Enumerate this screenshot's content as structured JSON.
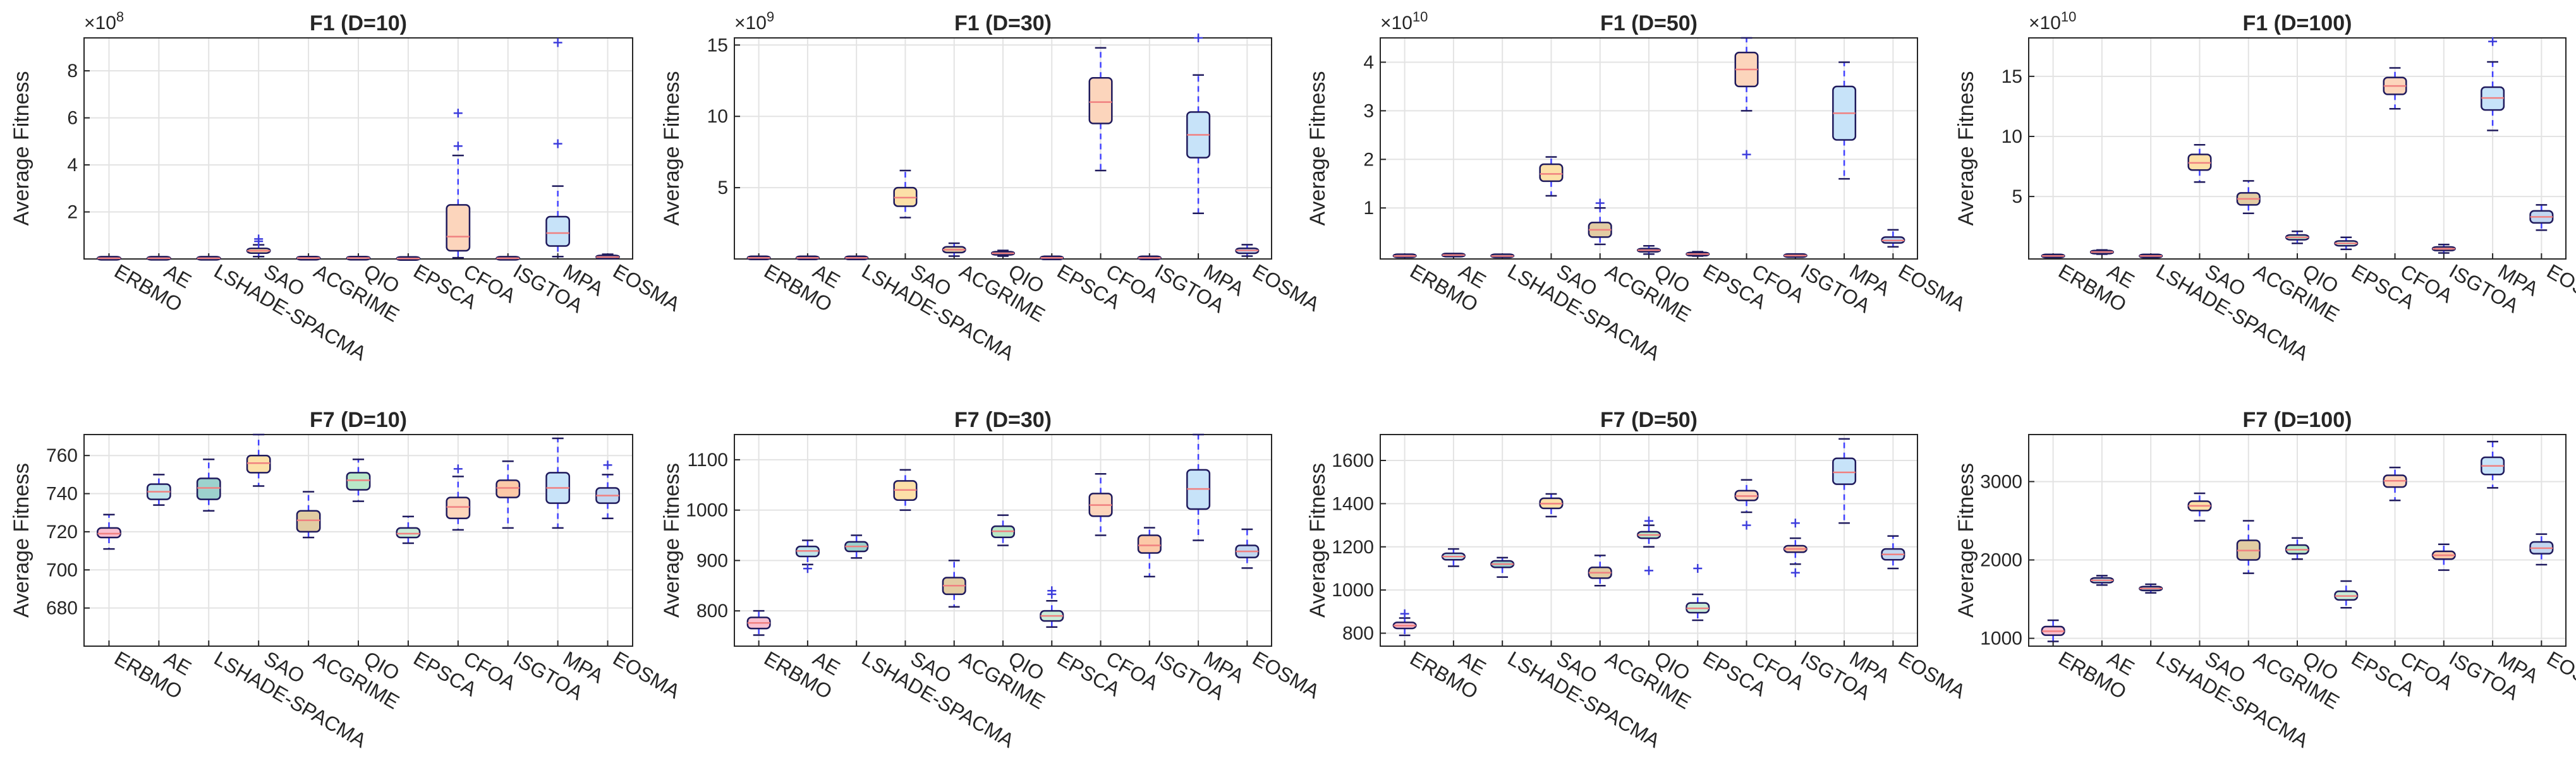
{
  "figure": {
    "panel_count": 8
  },
  "chart_data": [
    {
      "type": "boxplot",
      "title": "F1 (D=10)",
      "ylabel": "Average Fitness",
      "exponent": "×10^8",
      "exp_base": "×10",
      "exp_power": "8",
      "ylim": [
        0,
        9.4
      ],
      "yticks": [
        2,
        4,
        6,
        8
      ],
      "categories": [
        "ERBMO",
        "AE",
        "LSHADE-SPACMA",
        "SAO",
        "ACGRIME",
        "QIO",
        "EPSCA",
        "CFOA",
        "ISGTOA",
        "MPA",
        "EOSMA"
      ],
      "boxes": [
        {
          "q1": 0.02,
          "med": 0.03,
          "q3": 0.04,
          "lo": 0.01,
          "hi": 0.05,
          "out": []
        },
        {
          "q1": 0.02,
          "med": 0.03,
          "q3": 0.04,
          "lo": 0.01,
          "hi": 0.05,
          "out": []
        },
        {
          "q1": 0.02,
          "med": 0.03,
          "q3": 0.04,
          "lo": 0.01,
          "hi": 0.05,
          "out": []
        },
        {
          "q1": 0.25,
          "med": 0.35,
          "q3": 0.45,
          "lo": 0.1,
          "hi": 0.6,
          "out": [
            0.75,
            0.85
          ]
        },
        {
          "q1": 0.02,
          "med": 0.04,
          "q3": 0.05,
          "lo": 0.01,
          "hi": 0.08,
          "out": []
        },
        {
          "q1": 0.02,
          "med": 0.04,
          "q3": 0.05,
          "lo": 0.01,
          "hi": 0.08,
          "out": []
        },
        {
          "q1": 0.01,
          "med": 0.02,
          "q3": 0.03,
          "lo": 0.0,
          "hi": 0.05,
          "out": []
        },
        {
          "q1": 0.35,
          "med": 0.95,
          "q3": 2.3,
          "lo": 0.05,
          "hi": 4.4,
          "out": [
            4.8,
            6.2
          ]
        },
        {
          "q1": 0.02,
          "med": 0.03,
          "q3": 0.04,
          "lo": 0.01,
          "hi": 0.05,
          "out": []
        },
        {
          "q1": 0.55,
          "med": 1.1,
          "q3": 1.8,
          "lo": 0.1,
          "hi": 3.1,
          "out": [
            4.9,
            9.2
          ]
        },
        {
          "q1": 0.05,
          "med": 0.08,
          "q3": 0.12,
          "lo": 0.02,
          "hi": 0.2,
          "out": []
        }
      ]
    },
    {
      "type": "boxplot",
      "title": "F1 (D=30)",
      "ylabel": "Average Fitness",
      "exponent": "×10^9",
      "exp_base": "×10",
      "exp_power": "9",
      "ylim": [
        0,
        15.5
      ],
      "yticks": [
        5,
        10,
        15
      ],
      "categories": [
        "ERBMO",
        "AE",
        "LSHADE-SPACMA",
        "SAO",
        "ACGRIME",
        "QIO",
        "EPSCA",
        "CFOA",
        "ISGTOA",
        "MPA",
        "EOSMA"
      ],
      "boxes": [
        {
          "q1": 0.05,
          "med": 0.08,
          "q3": 0.1,
          "lo": 0.02,
          "hi": 0.15,
          "out": []
        },
        {
          "q1": 0.05,
          "med": 0.08,
          "q3": 0.1,
          "lo": 0.02,
          "hi": 0.15,
          "out": []
        },
        {
          "q1": 0.05,
          "med": 0.08,
          "q3": 0.1,
          "lo": 0.02,
          "hi": 0.15,
          "out": []
        },
        {
          "q1": 3.7,
          "med": 4.3,
          "q3": 5.0,
          "lo": 2.9,
          "hi": 6.2,
          "out": []
        },
        {
          "q1": 0.45,
          "med": 0.65,
          "q3": 0.85,
          "lo": 0.2,
          "hi": 1.1,
          "out": []
        },
        {
          "q1": 0.3,
          "med": 0.4,
          "q3": 0.5,
          "lo": 0.2,
          "hi": 0.6,
          "out": []
        },
        {
          "q1": 0.05,
          "med": 0.08,
          "q3": 0.1,
          "lo": 0.02,
          "hi": 0.15,
          "out": []
        },
        {
          "q1": 9.5,
          "med": 11.0,
          "q3": 12.7,
          "lo": 6.2,
          "hi": 14.8,
          "out": []
        },
        {
          "q1": 0.05,
          "med": 0.08,
          "q3": 0.1,
          "lo": 0.02,
          "hi": 0.15,
          "out": []
        },
        {
          "q1": 7.1,
          "med": 8.7,
          "q3": 10.3,
          "lo": 3.2,
          "hi": 12.9,
          "out": [
            15.5
          ]
        },
        {
          "q1": 0.4,
          "med": 0.6,
          "q3": 0.75,
          "lo": 0.2,
          "hi": 1.0,
          "out": []
        }
      ]
    },
    {
      "type": "boxplot",
      "title": "F1 (D=50)",
      "ylabel": "Average Fitness",
      "exponent": "×10^10",
      "exp_base": "×10",
      "exp_power": "10",
      "ylim": [
        -0.05,
        4.5
      ],
      "yticks": [
        1,
        2,
        3,
        4
      ],
      "categories": [
        "ERBMO",
        "AE",
        "LSHADE-SPACMA",
        "SAO",
        "ACGRIME",
        "QIO",
        "EPSCA",
        "CFOA",
        "ISGTOA",
        "MPA",
        "EOSMA"
      ],
      "boxes": [
        {
          "q1": 0.01,
          "med": 0.01,
          "q3": 0.02,
          "lo": 0.0,
          "hi": 0.03,
          "out": []
        },
        {
          "q1": 0.02,
          "med": 0.03,
          "q3": 0.04,
          "lo": 0.01,
          "hi": 0.05,
          "out": []
        },
        {
          "q1": 0.01,
          "med": 0.01,
          "q3": 0.02,
          "lo": 0.0,
          "hi": 0.03,
          "out": []
        },
        {
          "q1": 1.55,
          "med": 1.7,
          "q3": 1.9,
          "lo": 1.25,
          "hi": 2.05,
          "out": []
        },
        {
          "q1": 0.4,
          "med": 0.55,
          "q3": 0.7,
          "lo": 0.25,
          "hi": 1.0,
          "out": [
            1.1
          ]
        },
        {
          "q1": 0.1,
          "med": 0.13,
          "q3": 0.16,
          "lo": 0.05,
          "hi": 0.22,
          "out": []
        },
        {
          "q1": 0.03,
          "med": 0.05,
          "q3": 0.07,
          "lo": 0.01,
          "hi": 0.1,
          "out": []
        },
        {
          "q1": 3.5,
          "med": 3.85,
          "q3": 4.2,
          "lo": 3.0,
          "hi": 4.5,
          "out": [
            2.1
          ]
        },
        {
          "q1": 0.01,
          "med": 0.02,
          "q3": 0.03,
          "lo": 0.0,
          "hi": 0.04,
          "out": []
        },
        {
          "q1": 2.4,
          "med": 2.95,
          "q3": 3.5,
          "lo": 1.6,
          "hi": 4.0,
          "out": []
        },
        {
          "q1": 0.28,
          "med": 0.33,
          "q3": 0.4,
          "lo": 0.2,
          "hi": 0.55,
          "out": []
        }
      ]
    },
    {
      "type": "boxplot",
      "title": "F1 (D=100)",
      "ylabel": "Average Fitness",
      "exponent": "×10^10",
      "exp_base": "×10",
      "exp_power": "10",
      "ylim": [
        -0.2,
        18.2
      ],
      "yticks": [
        5,
        10,
        15
      ],
      "categories": [
        "ERBMO",
        "AE",
        "LSHADE-SPACMA",
        "SAO",
        "ACGRIME",
        "QIO",
        "EPSCA",
        "CFOA",
        "ISGTOA",
        "MPA",
        "EOSMA"
      ],
      "boxes": [
        {
          "q1": 0.03,
          "med": 0.05,
          "q3": 0.07,
          "lo": 0.01,
          "hi": 0.1,
          "out": []
        },
        {
          "q1": 0.3,
          "med": 0.38,
          "q3": 0.45,
          "lo": 0.2,
          "hi": 0.55,
          "out": []
        },
        {
          "q1": 0.03,
          "med": 0.05,
          "q3": 0.07,
          "lo": 0.01,
          "hi": 0.1,
          "out": []
        },
        {
          "q1": 7.2,
          "med": 7.8,
          "q3": 8.5,
          "lo": 6.2,
          "hi": 9.3,
          "out": []
        },
        {
          "q1": 4.3,
          "med": 4.8,
          "q3": 5.3,
          "lo": 3.6,
          "hi": 6.3,
          "out": []
        },
        {
          "q1": 1.4,
          "med": 1.6,
          "q3": 1.8,
          "lo": 1.1,
          "hi": 2.1,
          "out": []
        },
        {
          "q1": 0.9,
          "med": 1.1,
          "q3": 1.3,
          "lo": 0.6,
          "hi": 1.6,
          "out": []
        },
        {
          "q1": 13.5,
          "med": 14.2,
          "q3": 14.9,
          "lo": 12.3,
          "hi": 15.7,
          "out": []
        },
        {
          "q1": 0.5,
          "med": 0.65,
          "q3": 0.8,
          "lo": 0.3,
          "hi": 1.0,
          "out": []
        },
        {
          "q1": 12.2,
          "med": 13.2,
          "q3": 14.1,
          "lo": 10.5,
          "hi": 16.2,
          "out": [
            17.9
          ]
        },
        {
          "q1": 2.8,
          "med": 3.3,
          "q3": 3.8,
          "lo": 2.2,
          "hi": 4.3,
          "out": []
        }
      ]
    },
    {
      "type": "boxplot",
      "title": "F7 (D=10)",
      "ylabel": "Average Fitness",
      "exponent": "",
      "exp_base": "",
      "exp_power": "",
      "ylim": [
        660,
        771
      ],
      "yticks": [
        680,
        700,
        720,
        740,
        760
      ],
      "categories": [
        "ERBMO",
        "AE",
        "LSHADE-SPACMA",
        "SAO",
        "ACGRIME",
        "QIO",
        "EPSCA",
        "CFOA",
        "ISGTOA",
        "MPA",
        "EOSMA"
      ],
      "boxes": [
        {
          "q1": 717,
          "med": 719,
          "q3": 722,
          "lo": 711,
          "hi": 729,
          "out": []
        },
        {
          "q1": 737,
          "med": 741,
          "q3": 745,
          "lo": 734,
          "hi": 750,
          "out": []
        },
        {
          "q1": 737,
          "med": 743,
          "q3": 748,
          "lo": 731,
          "hi": 758,
          "out": []
        },
        {
          "q1": 751,
          "med": 756,
          "q3": 760,
          "lo": 744,
          "hi": 771,
          "out": []
        },
        {
          "q1": 720,
          "med": 726,
          "q3": 731,
          "lo": 717,
          "hi": 741,
          "out": []
        },
        {
          "q1": 742,
          "med": 747,
          "q3": 751,
          "lo": 736,
          "hi": 758,
          "out": []
        },
        {
          "q1": 717,
          "med": 719,
          "q3": 722,
          "lo": 714,
          "hi": 728,
          "out": []
        },
        {
          "q1": 727,
          "med": 733,
          "q3": 738,
          "lo": 721,
          "hi": 749,
          "out": [
            753
          ]
        },
        {
          "q1": 738,
          "med": 743,
          "q3": 747,
          "lo": 722,
          "hi": 757,
          "out": []
        },
        {
          "q1": 735,
          "med": 743,
          "q3": 751,
          "lo": 722,
          "hi": 769,
          "out": []
        },
        {
          "q1": 735,
          "med": 739,
          "q3": 743,
          "lo": 727,
          "hi": 750,
          "out": [
            755
          ]
        }
      ]
    },
    {
      "type": "boxplot",
      "title": "F7 (D=30)",
      "ylabel": "Average Fitness",
      "exponent": "",
      "exp_base": "",
      "exp_power": "",
      "ylim": [
        730,
        1150
      ],
      "yticks": [
        800,
        900,
        1000,
        1100
      ],
      "categories": [
        "ERBMO",
        "AE",
        "LSHADE-SPACMA",
        "SAO",
        "ACGRIME",
        "QIO",
        "EPSCA",
        "CFOA",
        "ISGTOA",
        "MPA",
        "EOSMA"
      ],
      "boxes": [
        {
          "q1": 765,
          "med": 776,
          "q3": 787,
          "lo": 752,
          "hi": 800,
          "out": []
        },
        {
          "q1": 908,
          "med": 919,
          "q3": 928,
          "lo": 892,
          "hi": 940,
          "out": [
            884
          ]
        },
        {
          "q1": 918,
          "med": 928,
          "q3": 937,
          "lo": 905,
          "hi": 950,
          "out": []
        },
        {
          "q1": 1020,
          "med": 1040,
          "q3": 1058,
          "lo": 1000,
          "hi": 1080,
          "out": []
        },
        {
          "q1": 833,
          "med": 850,
          "q3": 866,
          "lo": 808,
          "hi": 900,
          "out": []
        },
        {
          "q1": 946,
          "med": 958,
          "q3": 968,
          "lo": 930,
          "hi": 990,
          "out": []
        },
        {
          "q1": 780,
          "med": 790,
          "q3": 800,
          "lo": 768,
          "hi": 820,
          "out": [
            833,
            840
          ]
        },
        {
          "q1": 988,
          "med": 1010,
          "q3": 1033,
          "lo": 950,
          "hi": 1072,
          "out": []
        },
        {
          "q1": 915,
          "med": 930,
          "q3": 950,
          "lo": 868,
          "hi": 965,
          "out": []
        },
        {
          "q1": 1002,
          "med": 1042,
          "q3": 1080,
          "lo": 940,
          "hi": 1150,
          "out": []
        },
        {
          "q1": 906,
          "med": 918,
          "q3": 930,
          "lo": 885,
          "hi": 962,
          "out": []
        }
      ]
    },
    {
      "type": "boxplot",
      "title": "F7 (D=50)",
      "ylabel": "Average Fitness",
      "exponent": "",
      "exp_base": "",
      "exp_power": "",
      "ylim": [
        740,
        1720
      ],
      "yticks": [
        800,
        1000,
        1200,
        1400,
        1600
      ],
      "categories": [
        "ERBMO",
        "AE",
        "LSHADE-SPACMA",
        "SAO",
        "ACGRIME",
        "QIO",
        "EPSCA",
        "CFOA",
        "ISGTOA",
        "MPA",
        "EOSMA"
      ],
      "boxes": [
        {
          "q1": 822,
          "med": 835,
          "q3": 850,
          "lo": 790,
          "hi": 870,
          "out": [
            890
          ]
        },
        {
          "q1": 1140,
          "med": 1155,
          "q3": 1170,
          "lo": 1110,
          "hi": 1190,
          "out": []
        },
        {
          "q1": 1105,
          "med": 1120,
          "q3": 1135,
          "lo": 1060,
          "hi": 1150,
          "out": []
        },
        {
          "q1": 1378,
          "med": 1400,
          "q3": 1425,
          "lo": 1340,
          "hi": 1445,
          "out": []
        },
        {
          "q1": 1055,
          "med": 1080,
          "q3": 1105,
          "lo": 1020,
          "hi": 1160,
          "out": []
        },
        {
          "q1": 1240,
          "med": 1255,
          "q3": 1270,
          "lo": 1200,
          "hi": 1300,
          "out": [
            1320,
            1090
          ]
        },
        {
          "q1": 895,
          "med": 915,
          "q3": 940,
          "lo": 860,
          "hi": 980,
          "out": [
            1100
          ]
        },
        {
          "q1": 1415,
          "med": 1435,
          "q3": 1460,
          "lo": 1360,
          "hi": 1510,
          "out": [
            1300
          ]
        },
        {
          "q1": 1175,
          "med": 1190,
          "q3": 1205,
          "lo": 1120,
          "hi": 1240,
          "out": [
            1080,
            1310
          ]
        },
        {
          "q1": 1490,
          "med": 1545,
          "q3": 1610,
          "lo": 1310,
          "hi": 1700,
          "out": []
        },
        {
          "q1": 1140,
          "med": 1165,
          "q3": 1190,
          "lo": 1100,
          "hi": 1250,
          "out": []
        }
      ]
    },
    {
      "type": "boxplot",
      "title": "F7 (D=100)",
      "ylabel": "Average Fitness",
      "exponent": "",
      "exp_base": "",
      "exp_power": "",
      "ylim": [
        900,
        3600
      ],
      "yticks": [
        1000,
        2000,
        3000
      ],
      "categories": [
        "ERBMO",
        "AE",
        "LSHADE-SPACMA",
        "SAO",
        "ACGRIME",
        "QIO",
        "EPSCA",
        "CFOA",
        "ISGTOA",
        "MPA",
        "EOSMA"
      ],
      "boxes": [
        {
          "q1": 1040,
          "med": 1090,
          "q3": 1150,
          "lo": 960,
          "hi": 1230,
          "out": []
        },
        {
          "q1": 1710,
          "med": 1740,
          "q3": 1770,
          "lo": 1680,
          "hi": 1800,
          "out": []
        },
        {
          "q1": 1610,
          "med": 1635,
          "q3": 1660,
          "lo": 1580,
          "hi": 1690,
          "out": []
        },
        {
          "q1": 2630,
          "med": 2690,
          "q3": 2750,
          "lo": 2500,
          "hi": 2850,
          "out": []
        },
        {
          "q1": 2000,
          "med": 2120,
          "q3": 2250,
          "lo": 1830,
          "hi": 2500,
          "out": []
        },
        {
          "q1": 2080,
          "med": 2130,
          "q3": 2190,
          "lo": 2010,
          "hi": 2280,
          "out": []
        },
        {
          "q1": 1490,
          "med": 1540,
          "q3": 1600,
          "lo": 1390,
          "hi": 1730,
          "out": []
        },
        {
          "q1": 2930,
          "med": 3010,
          "q3": 3080,
          "lo": 2760,
          "hi": 3180,
          "out": []
        },
        {
          "q1": 2010,
          "med": 2060,
          "q3": 2110,
          "lo": 1870,
          "hi": 2200,
          "out": []
        },
        {
          "q1": 3090,
          "med": 3200,
          "q3": 3310,
          "lo": 2920,
          "hi": 3510,
          "out": []
        },
        {
          "q1": 2080,
          "med": 2150,
          "q3": 2230,
          "lo": 1940,
          "hi": 2330,
          "out": []
        }
      ]
    }
  ],
  "colors": {
    "box_fills": [
      "#f9c0d0",
      "#bfe3ea",
      "#9dd2cd",
      "#fce0a8",
      "#e2cca3",
      "#b9e8c8",
      "#c9ebd7",
      "#fcd5bc",
      "#fcc9a8",
      "#c7e3f9",
      "#c2d6f0"
    ],
    "box_edge": "#1f1a5c",
    "median": "#f08080",
    "whisker": "#4040ff",
    "outlier": "#3c3cdc",
    "axis": "#262626",
    "grid": "#e3e3e3"
  }
}
